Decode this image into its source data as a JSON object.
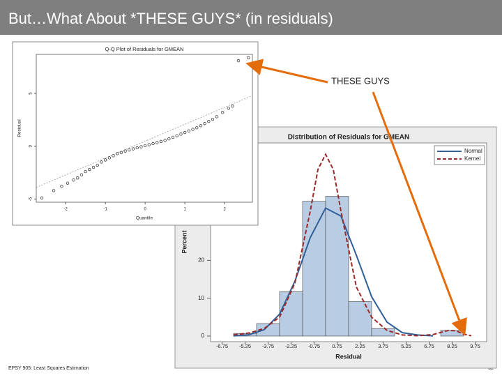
{
  "slide": {
    "title": "But…What About *THESE GUYS* (in residuals)",
    "annotation": "THESE GUYS",
    "footer": "EPSY 905: Least Squares Estimation",
    "page_number": "32"
  },
  "chart_data": [
    {
      "type": "histogram",
      "title": "Distribution of Residuals for GMEAN",
      "x_label": "Residual",
      "y_label": "Percent",
      "bins": [
        -6,
        -4.5,
        -3,
        -1.5,
        0,
        1.5,
        3,
        4.5,
        6,
        7.5,
        9
      ],
      "values": [
        0.7,
        3.3,
        11.7,
        35.6,
        36.9,
        9.1,
        2,
        0,
        0,
        1.5
      ],
      "color": "#b8cce4",
      "xlim": [
        -7.5,
        10.5
      ],
      "xticks": [
        -6.75,
        -5.25,
        -3.75,
        -2.25,
        -0.75,
        0.75,
        2.25,
        3.75,
        5.25,
        6.75,
        8.25,
        9.75
      ],
      "ylim": [
        0,
        51
      ],
      "yticks": [
        0,
        10,
        20
      ],
      "legend": "top-right",
      "series": [
        {
          "name": "Normal",
          "color": "#2f5f98",
          "dash": false,
          "x": [
            -6,
            -5,
            -4,
            -3,
            -2,
            -1,
            0,
            1,
            2,
            3,
            4,
            5,
            6,
            7
          ],
          "values": [
            0.05,
            0.35,
            1.7,
            5.8,
            14.5,
            26,
            33.8,
            31.7,
            21.4,
            10.4,
            3.7,
            0.9,
            0.3,
            0.05
          ]
        },
        {
          "name": "Kernel",
          "color": "#9b2a2a",
          "dash": true,
          "x": [
            -6,
            -5,
            -4,
            -3,
            -2,
            -1,
            -0.5,
            0,
            0.5,
            1,
            2,
            3,
            4,
            5,
            6,
            7,
            8,
            8.5,
            9,
            9.5
          ],
          "values": [
            0.3,
            0.8,
            2,
            5,
            14,
            33,
            44,
            48,
            44,
            33,
            13,
            5,
            1.5,
            0.3,
            0.1,
            0.4,
            1.5,
            1.4,
            0.5,
            0.1
          ]
        }
      ]
    },
    {
      "type": "scatter",
      "title": "Q-Q Plot of Residuals for GMEAN",
      "x_label": "Quantile",
      "y_label": "Residual",
      "x": [
        -2.6,
        -2.3,
        -2.1,
        -1.95,
        -1.8,
        -1.7,
        -1.6,
        -1.5,
        -1.4,
        -1.3,
        -1.2,
        -1.1,
        -1.0,
        -0.9,
        -0.8,
        -0.7,
        -0.6,
        -0.5,
        -0.4,
        -0.3,
        -0.2,
        -0.1,
        0,
        0.1,
        0.2,
        0.3,
        0.4,
        0.5,
        0.6,
        0.7,
        0.8,
        0.9,
        1.0,
        1.1,
        1.2,
        1.3,
        1.4,
        1.5,
        1.6,
        1.7,
        1.8,
        1.95,
        2.1,
        2.2,
        2.35,
        2.6
      ],
      "values": [
        -4.9,
        -4.2,
        -3.8,
        -3.5,
        -3.2,
        -3.0,
        -2.7,
        -2.4,
        -2.2,
        -2.0,
        -1.8,
        -1.5,
        -1.3,
        -1.1,
        -0.9,
        -0.7,
        -0.6,
        -0.45,
        -0.35,
        -0.25,
        -0.15,
        -0.05,
        0.05,
        0.15,
        0.25,
        0.35,
        0.45,
        0.55,
        0.7,
        0.85,
        1.0,
        1.15,
        1.3,
        1.45,
        1.6,
        1.75,
        1.95,
        2.15,
        2.35,
        2.55,
        2.8,
        3.2,
        3.6,
        3.8,
        8.1,
        8.4
      ],
      "reference_line": {
        "x": [
          -2.74,
          2.7
        ],
        "y": [
          -3.9,
          4.8
        ]
      },
      "xlim": [
        -2.74,
        2.7
      ],
      "xticks": [
        -2,
        -1,
        0,
        1,
        2
      ],
      "ylim": [
        -5.3,
        8.7
      ],
      "yticks": [
        -5,
        0,
        5
      ]
    }
  ]
}
